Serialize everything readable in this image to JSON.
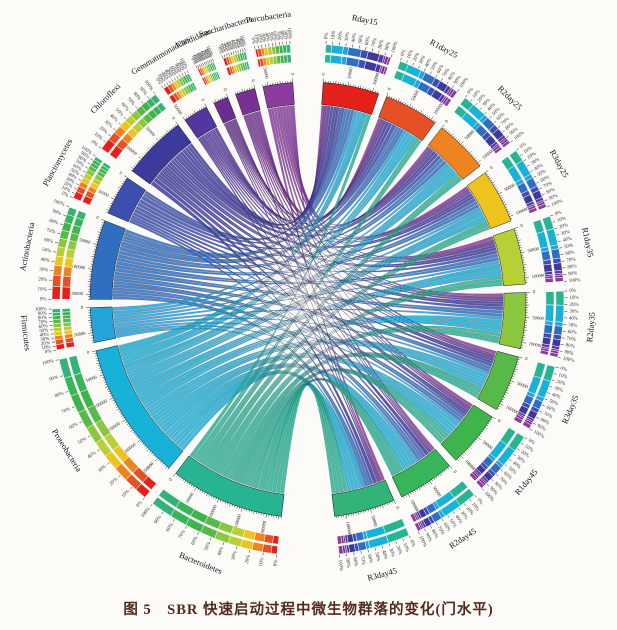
{
  "figure": {
    "caption": "图 5　SBR 快速启动过程中微生物群落的变化(门水平)"
  },
  "chart_data": {
    "type": "chord",
    "title": "图 5 SBR 快速启动过程中微生物群落的变化(门水平)",
    "description": "Circos chord diagram: microbial community composition (phylum level) of SBR samples; left half phyla, right half samples; ribbons link phylum abundance to samples",
    "layout": {
      "phyla_side": "left-counterclockwise-from-top",
      "samples_side": "right-clockwise-from-top",
      "grid": false,
      "legend": "none"
    },
    "percent_labels": [
      "0%",
      "10%",
      "20%",
      "30%",
      "40%",
      "50%",
      "60%",
      "70%",
      "80%",
      "90%",
      "100%"
    ],
    "scale": {
      "minor_tick": 5000,
      "major_tick": 25000,
      "label_every": 50000,
      "example_labels": [
        "0",
        "50000",
        "100000",
        "150000"
      ]
    },
    "phyla": [
      {
        "name": "Parcubacteria",
        "color": "#8b3a9e"
      },
      {
        "name": "Saccharibacteria",
        "color": "#7b2f96"
      },
      {
        "name": "Candidatus",
        "color": "#6a2d92"
      },
      {
        "name": "Gemmatimonadetes",
        "color": "#55369e"
      },
      {
        "name": "Chloroflexi",
        "color": "#3e3a9c"
      },
      {
        "name": "Planctomycetes",
        "color": "#3c4fae"
      },
      {
        "name": "Actinobacteria",
        "color": "#2f6ec0"
      },
      {
        "name": "Firmicutes",
        "color": "#25a3da"
      },
      {
        "name": "Proteobacteria",
        "color": "#18b2d8"
      },
      {
        "name": "Bacteroidetes",
        "color": "#27b493"
      }
    ],
    "samples": [
      {
        "name": "Rday15",
        "color": "#e3211a"
      },
      {
        "name": "R1day25",
        "color": "#e55026"
      },
      {
        "name": "R2day25",
        "color": "#ef8322"
      },
      {
        "name": "R3day25",
        "color": "#eec31e"
      },
      {
        "name": "R1day35",
        "color": "#b8cf35"
      },
      {
        "name": "R2day35",
        "color": "#8bc63f"
      },
      {
        "name": "R3day35",
        "color": "#58b94b"
      },
      {
        "name": "R1day45",
        "color": "#3fb44d"
      },
      {
        "name": "R2day45",
        "color": "#38b45b"
      },
      {
        "name": "R3day45",
        "color": "#32b377"
      }
    ],
    "matrix_rows": "phyla",
    "matrix_cols": "samples",
    "matrix": [
      [
        4000,
        6000,
        5000,
        6000,
        7000,
        6000,
        7000,
        6000,
        6000,
        7000
      ],
      [
        5000,
        4000,
        4000,
        4000,
        4000,
        4000,
        4000,
        4000,
        3000,
        4000
      ],
      [
        3000,
        3000,
        3000,
        3000,
        3000,
        3000,
        3000,
        3000,
        3000,
        3000
      ],
      [
        8000,
        6000,
        5000,
        5000,
        5000,
        5000,
        4000,
        4000,
        4000,
        4000
      ],
      [
        20000,
        15000,
        14000,
        13000,
        13000,
        12000,
        12000,
        11000,
        10000,
        10000
      ],
      [
        12000,
        10000,
        9000,
        8000,
        8000,
        8000,
        7000,
        6000,
        6000,
        6000
      ],
      [
        22000,
        19000,
        17000,
        16000,
        16000,
        15000,
        14000,
        14000,
        14000,
        13000
      ],
      [
        9000,
        8000,
        7000,
        7000,
        7000,
        7000,
        7000,
        6000,
        6000,
        6000
      ],
      [
        20000,
        24000,
        26000,
        27000,
        28000,
        29000,
        30000,
        31000,
        32000,
        33000
      ],
      [
        10000,
        15000,
        18000,
        20000,
        22000,
        24000,
        26000,
        28000,
        30000,
        37000
      ]
    ]
  }
}
